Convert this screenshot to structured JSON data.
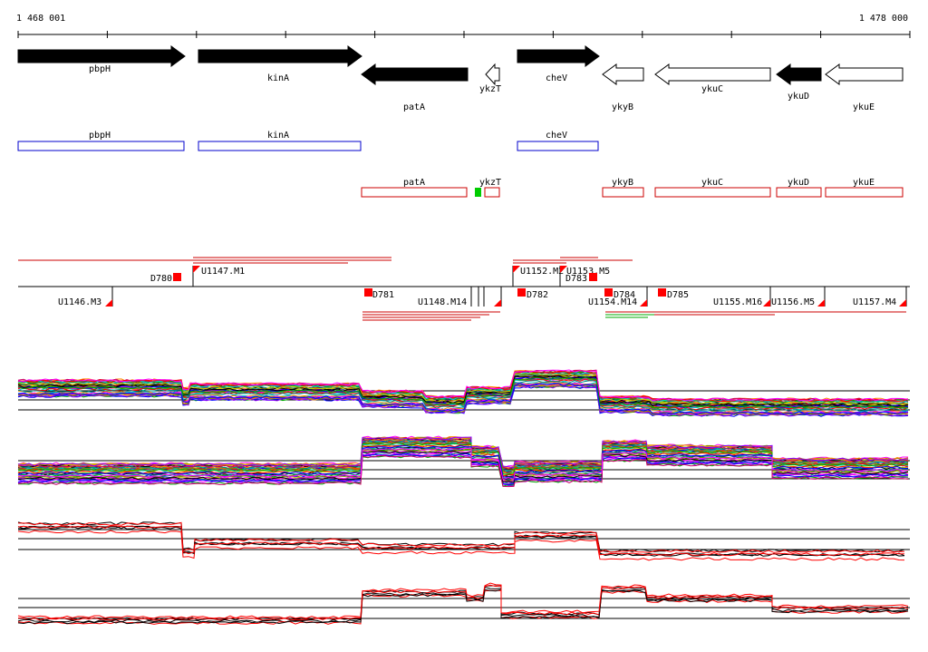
{
  "ruler": {
    "start_label": "1 468 001",
    "end_label": "1 478 000"
  },
  "genes": [
    {
      "name": "pbpH",
      "strand": "+",
      "filled": true
    },
    {
      "name": "kinA",
      "strand": "+",
      "filled": true
    },
    {
      "name": "patA",
      "strand": "-",
      "filled": true
    },
    {
      "name": "ykzT",
      "strand": "-",
      "filled": false
    },
    {
      "name": "cheV",
      "strand": "+",
      "filled": true
    },
    {
      "name": "ykyB",
      "strand": "-",
      "filled": false
    },
    {
      "name": "ykuC",
      "strand": "-",
      "filled": false
    },
    {
      "name": "ykuD",
      "strand": "-",
      "filled": true
    },
    {
      "name": "ykuE",
      "strand": "-",
      "filled": false
    }
  ],
  "plus_boxes": [
    "pbpH",
    "kinA",
    "cheV"
  ],
  "minus_boxes": [
    "patA",
    "ykzT",
    "ykyB",
    "ykuC",
    "ykuD",
    "ykuE"
  ],
  "upper_labels": [
    "D780",
    "U1147.M1",
    "U1152.M2",
    "U1153.M5",
    "D783"
  ],
  "lower_labels": [
    "U1146.M3",
    "D781",
    "U1148.M14",
    "D782",
    "D784",
    "U1154.M14",
    "D785",
    "U1155.M16",
    "U1156.M5",
    "U1157.M4"
  ],
  "colors": {
    "forward_box": "#0000cc",
    "reverse_box": "#cc0000",
    "marker": "#ff0000",
    "ykzT_marker": "#00cc00",
    "profile_highlight": "#ff0000"
  }
}
